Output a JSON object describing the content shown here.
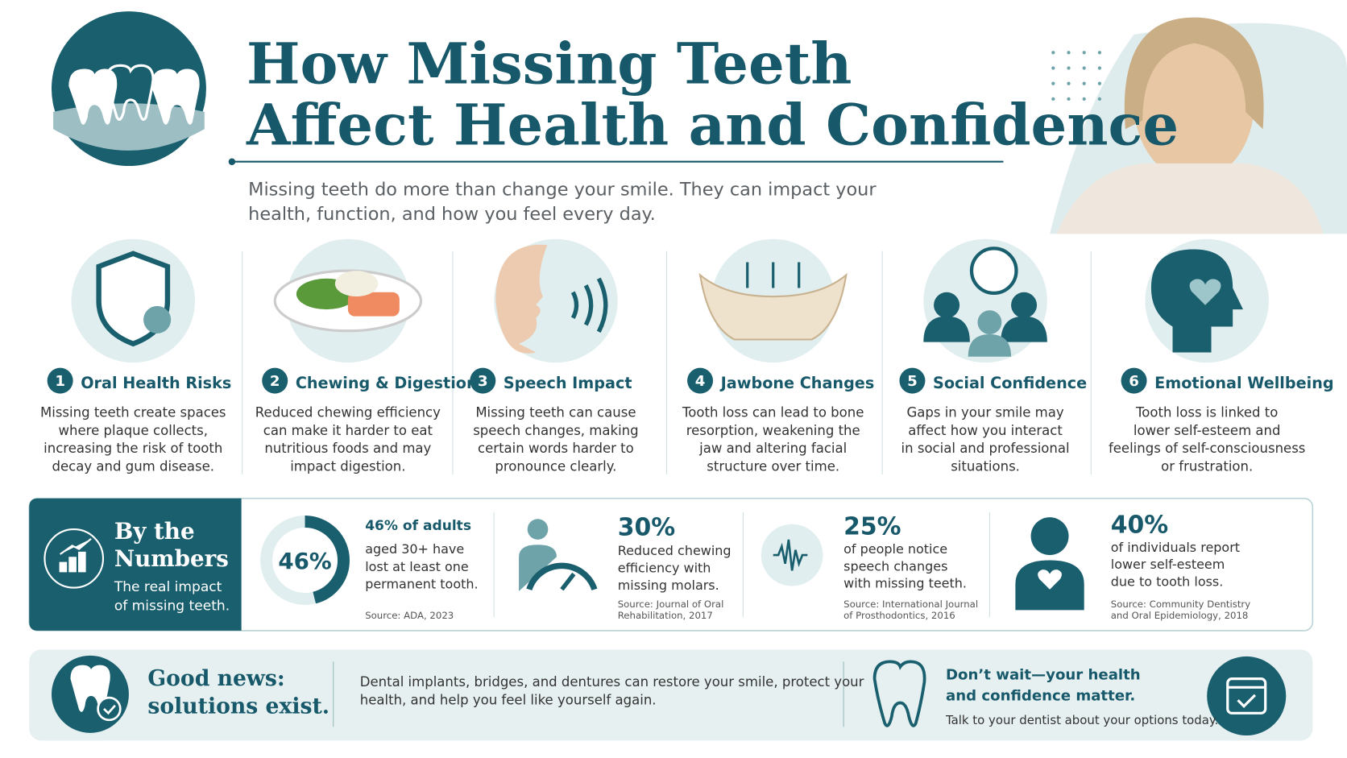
{
  "header": {
    "title_lines": [
      "How Missing Teeth",
      "Affect Health and Confidence"
    ],
    "subtitle_lines": [
      "Missing teeth do more than change your smile. They can impact your",
      "health, function, and how you feel every day."
    ]
  },
  "cards": [
    {
      "number": 1,
      "title": "Oral Health Risks",
      "lines": [
        "Missing teeth create spaces",
        "where plaque collects,",
        "increasing the risk of tooth",
        "decay and gum disease."
      ]
    },
    {
      "number": 2,
      "title": "Chewing & Digestion",
      "lines": [
        "Reduced chewing efficiency",
        "can make it harder to eat",
        "nutritious foods and may",
        "impact digestion."
      ]
    },
    {
      "number": 3,
      "title": "Speech Impact",
      "lines": [
        "Missing teeth can cause",
        "speech changes, making",
        "certain words harder to",
        "pronounce clearly."
      ]
    },
    {
      "number": 4,
      "title": "Jawbone Changes",
      "lines": [
        "Tooth loss can lead to bone",
        "resorption, weakening the",
        "jaw and altering facial",
        "structure over time."
      ]
    },
    {
      "number": 5,
      "title": "Social Confidence",
      "lines": [
        "Gaps in your smile may",
        "affect how you interact",
        "in social and professional",
        "situations."
      ]
    },
    {
      "number": 6,
      "title": "Emotional Wellbeing",
      "lines": [
        "Tooth loss is linked to",
        "lower self-esteem and",
        "feelings of self-consciousness",
        "or frustration."
      ]
    }
  ],
  "numbers": {
    "title_lines": [
      "By the",
      "Numbers"
    ],
    "subtitle_lines": [
      "The real impact",
      "of missing teeth."
    ],
    "stats": [
      {
        "value": {
          "value": 46,
          "label": "46%"
        },
        "heading": "46% of adults",
        "lines": [
          "aged 30+ have",
          "lost at least one",
          "permanent tooth."
        ],
        "source_lines": [
          "Source: ADA, 2023"
        ]
      },
      {
        "value": "30%",
        "lines": [
          "Reduced chewing",
          "efficiency with",
          "missing molars."
        ],
        "source_lines": [
          "Source: Journal of Oral",
          "Rehabilitation, 2017"
        ]
      },
      {
        "value": "25%",
        "lines": [
          "of people notice",
          "speech changes",
          "with missing teeth."
        ],
        "source_lines": [
          "Source: International Journal",
          "of Prosthodontics, 2016"
        ]
      },
      {
        "value": "40%",
        "lines": [
          "of individuals report",
          "lower self-esteem",
          "due to tooth loss."
        ],
        "source_lines": [
          "Source: Community Dentistry",
          "and Oral Epidemiology, 2018"
        ]
      }
    ]
  },
  "footer": {
    "title_lines": [
      "Good news:",
      "solutions exist."
    ],
    "body_lines": [
      "Dental implants, bridges, and dentures can restore your smile, protect your",
      "health, and help you feel like yourself again."
    ],
    "cta_title_lines": [
      "Don’t wait—your health",
      "and confidence matter."
    ],
    "cta_text": "Talk to your dentist about your options today."
  }
}
